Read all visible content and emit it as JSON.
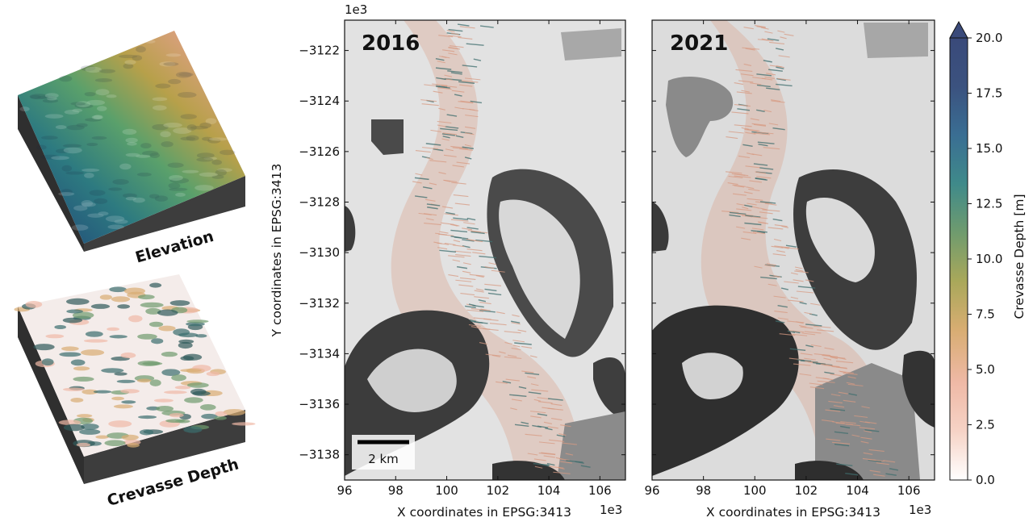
{
  "figure": {
    "block_labels": [
      "Elevation",
      "Crevasse Depth"
    ],
    "colors": {
      "elevation_ramp": [
        "#1f3f78",
        "#2d7a80",
        "#5aa06b",
        "#b7a04a",
        "#d9a07c",
        "#f2c0b5"
      ],
      "depth_colormap": [
        "#ffffff",
        "#f6d3c6",
        "#efb9a6",
        "#d8ad72",
        "#a9a85a",
        "#6f9b6e",
        "#3f8a8a",
        "#3a6e93",
        "#3b527f",
        "#3a4a7a"
      ],
      "glacier_flowband": "#d9a08a",
      "rock": "#3a3a3a",
      "ice": "#e6e6e6"
    }
  },
  "chart_data": [
    {
      "type": "heatmap",
      "title": "2016",
      "xlabel": "X coordinates in EPSG:3413",
      "ylabel": "Y coordinates in EPSG:3413",
      "x_offset_label": "1e3",
      "y_offset_label": "1e3",
      "xlim": [
        96,
        107
      ],
      "ylim": [
        -3139,
        -3120.8
      ],
      "xticks": [
        96,
        98,
        100,
        102,
        104,
        106
      ],
      "yticks": [
        -3122,
        -3124,
        -3126,
        -3128,
        -3130,
        -3132,
        -3134,
        -3136,
        -3138
      ],
      "scalebar_label": "2 km",
      "scalebar_length": 2
    },
    {
      "type": "heatmap",
      "title": "2021",
      "xlabel": "X coordinates in EPSG:3413",
      "x_offset_label": "1e3",
      "xlim": [
        96,
        107
      ],
      "ylim": [
        -3139,
        -3120.8
      ],
      "xticks": [
        96,
        98,
        100,
        102,
        104,
        106
      ]
    }
  ],
  "colorbar": {
    "label": "Crevasse Depth [m]",
    "min": 0,
    "max": 20,
    "extend": "max",
    "ticks": [
      0,
      2.5,
      5,
      7.5,
      10,
      12.5,
      15,
      17.5,
      20
    ],
    "tick_labels": [
      "0.0",
      "2.5",
      "5.0",
      "7.5",
      "10.0",
      "12.5",
      "15.0",
      "17.5",
      "20.0"
    ]
  }
}
